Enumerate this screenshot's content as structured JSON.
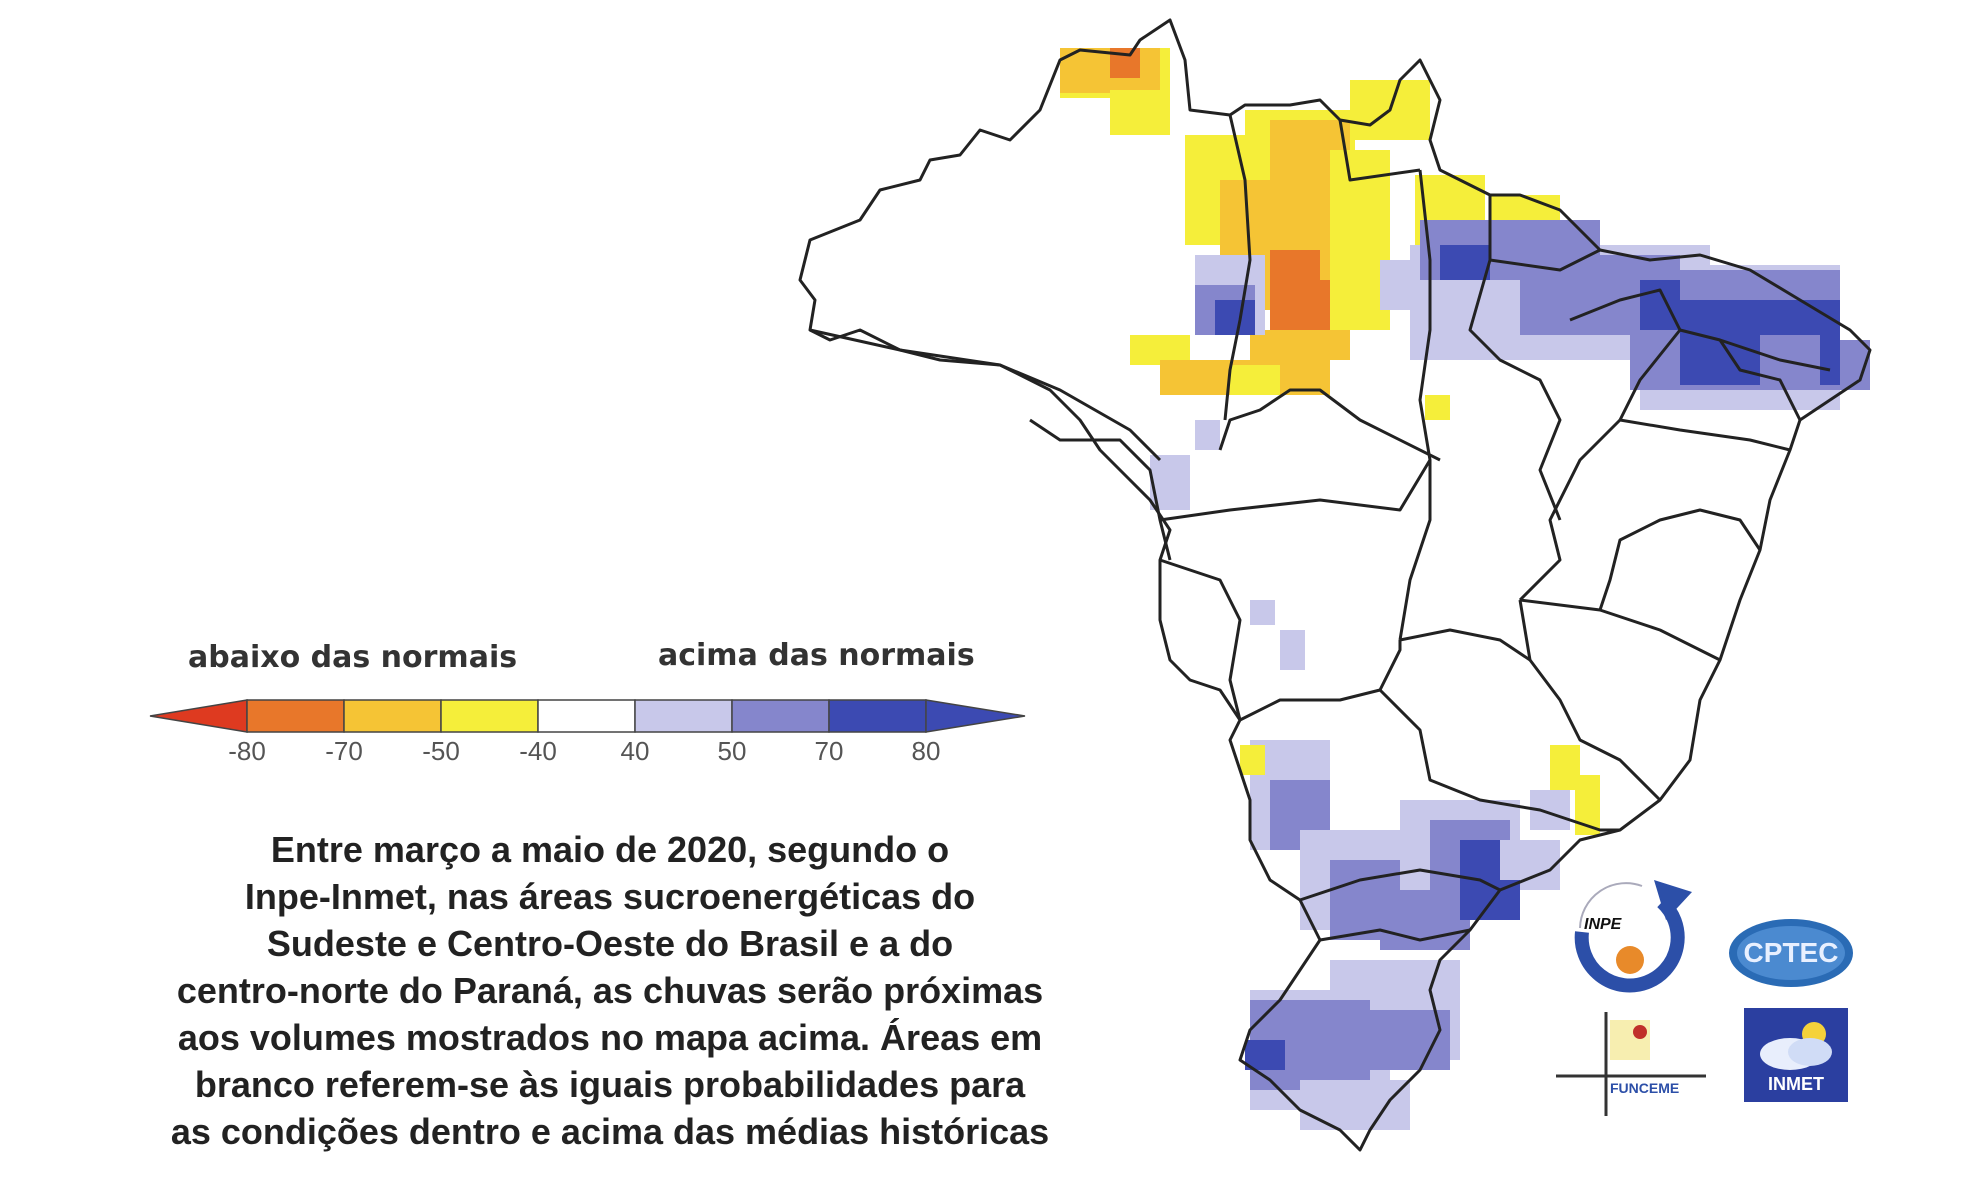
{
  "legend": {
    "below_label": "abaixo das normais",
    "above_label": "acima das normais",
    "ticks": [
      "-80",
      "-70",
      "-50",
      "-40",
      "40",
      "50",
      "70",
      "80"
    ],
    "colors": [
      "#de3a20",
      "#e8772a",
      "#f5c435",
      "#f5ee3a",
      "#ffffff",
      "#c8c8ea",
      "#8586cc",
      "#3c4ab2"
    ]
  },
  "caption": {
    "lines": [
      "Entre março a maio de 2020, segundo o",
      "Inpe-Inmet, nas áreas sucroenergéticas do",
      "Sudeste e Centro-Oeste do Brasil e a do",
      "centro-norte do Paraná, as chuvas serão próximas",
      "aos volumes mostrados no mapa acima. Áreas em",
      "branco referem-se às iguais probabilidades para",
      "as condições dentro e acima das médias históricas"
    ]
  },
  "logos": {
    "inpe": "INPE",
    "cptec": "CPTEC",
    "funceme": "FUNCEME",
    "inmet": "INMET"
  }
}
